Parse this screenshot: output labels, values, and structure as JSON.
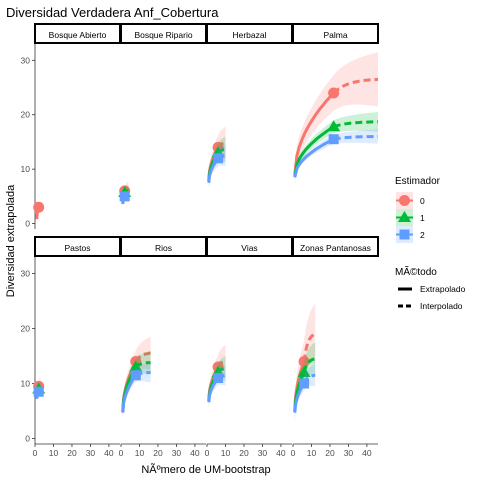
{
  "chart_data": {
    "type": "line",
    "title": "Diversidad Verdadera Anf_Cobertura",
    "xlabel": "NÃºmero de UM-bootstrap",
    "ylabel": "Diversidad extrapolada",
    "xlim": [
      0,
      46
    ],
    "ylim": [
      -1,
      33
    ],
    "x_ticks": [
      0,
      10,
      20,
      30,
      40
    ],
    "y_ticks": [
      0,
      10,
      20,
      30
    ],
    "grid": false,
    "legend_position": "right",
    "legend": {
      "estimator_title": "Estimador",
      "estimator_items": [
        {
          "label": "0",
          "color": "#F8766D",
          "shape": "circle"
        },
        {
          "label": "1",
          "color": "#00BA38",
          "shape": "triangle"
        },
        {
          "label": "2",
          "color": "#619CFF",
          "shape": "square"
        }
      ],
      "method_title": "MÃ©todo",
      "method_items": [
        {
          "label": "Extrapolado",
          "dash": "solid"
        },
        {
          "label": "Interpolado",
          "dash": "dashed"
        }
      ]
    },
    "panels": [
      {
        "name": "Bosque Abierto",
        "n": 2,
        "xmax": 2,
        "series": [
          {
            "q": "0",
            "start": 0.8,
            "obs": 3.0,
            "end": 3.0,
            "ci": 0.5
          }
        ]
      },
      {
        "name": "Bosque Ripario",
        "n": 2,
        "xmax": 4,
        "series": [
          {
            "q": "0",
            "start": 4.0,
            "obs": 6.0,
            "end": 6.5,
            "ci": 1.2
          },
          {
            "q": "1",
            "start": 3.8,
            "obs": 5.7,
            "end": 6.0,
            "ci": 1.0
          },
          {
            "q": "2",
            "start": 3.6,
            "obs": 5.0,
            "end": 5.3,
            "ci": 0.8
          }
        ]
      },
      {
        "name": "Herbazal",
        "n": 6,
        "xmax": 10,
        "series": [
          {
            "q": "0",
            "start": 8.0,
            "obs": 14.0,
            "end": 14.8,
            "ci": 3.0
          },
          {
            "q": "1",
            "start": 7.8,
            "obs": 13.0,
            "end": 13.6,
            "ci": 2.4
          },
          {
            "q": "2",
            "start": 7.5,
            "obs": 12.0,
            "end": 12.5,
            "ci": 2.0
          }
        ]
      },
      {
        "name": "Palma",
        "n": 22,
        "xmax": 46,
        "series": [
          {
            "q": "0",
            "start": 9.0,
            "obs": 24.0,
            "end": 26.5,
            "ci": 5.0
          },
          {
            "q": "1",
            "start": 8.8,
            "obs": 17.8,
            "end": 18.7,
            "ci": 1.8
          },
          {
            "q": "2",
            "start": 8.5,
            "obs": 15.5,
            "end": 16.0,
            "ci": 1.3
          }
        ]
      },
      {
        "name": "Pastos",
        "n": 2,
        "xmax": 3,
        "series": [
          {
            "q": "0",
            "start": 7.5,
            "obs": 9.5,
            "end": 10.0,
            "ci": 1.2
          },
          {
            "q": "1",
            "start": 7.4,
            "obs": 9.0,
            "end": 9.3,
            "ci": 1.0
          },
          {
            "q": "2",
            "start": 7.2,
            "obs": 8.5,
            "end": 8.7,
            "ci": 0.8
          }
        ]
      },
      {
        "name": "Rios",
        "n": 8,
        "xmax": 16,
        "series": [
          {
            "q": "0",
            "start": 5.0,
            "obs": 14.0,
            "end": 15.5,
            "ci": 3.0
          },
          {
            "q": "1",
            "start": 4.9,
            "obs": 13.0,
            "end": 13.8,
            "ci": 2.2
          },
          {
            "q": "2",
            "start": 4.7,
            "obs": 11.5,
            "end": 12.0,
            "ci": 1.8
          }
        ]
      },
      {
        "name": "Vias",
        "n": 6,
        "xmax": 10,
        "series": [
          {
            "q": "0",
            "start": 7.0,
            "obs": 13.0,
            "end": 14.0,
            "ci": 3.0
          },
          {
            "q": "1",
            "start": 6.8,
            "obs": 12.0,
            "end": 12.7,
            "ci": 2.3
          },
          {
            "q": "2",
            "start": 6.6,
            "obs": 11.0,
            "end": 11.4,
            "ci": 1.8
          }
        ]
      },
      {
        "name": "Zonas Pantanosas",
        "n": 6,
        "xmax": 12,
        "series": [
          {
            "q": "0",
            "start": 5.0,
            "obs": 14.0,
            "end": 19.0,
            "ci": 5.5
          },
          {
            "q": "1",
            "start": 4.9,
            "obs": 12.0,
            "end": 14.5,
            "ci": 3.0
          },
          {
            "q": "2",
            "start": 4.7,
            "obs": 10.0,
            "end": 11.5,
            "ci": 2.0
          }
        ]
      }
    ]
  }
}
